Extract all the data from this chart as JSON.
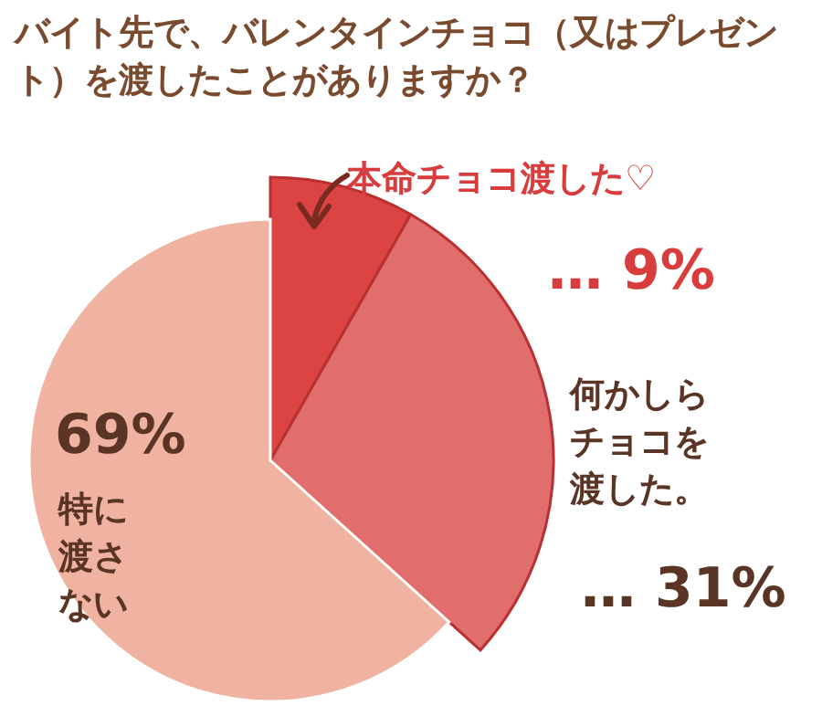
{
  "chart_data": {
    "type": "pie",
    "title": "バイト先で、バレンタインチョコ（又はプレゼント）を渡したことがありますか？",
    "categories": [
      "本命チョコ渡した♡",
      "何かしらチョコを渡した。",
      "特に渡さない"
    ],
    "values": [
      9,
      31,
      69
    ],
    "value_labels": [
      "… 9%",
      "… 31%",
      "69%"
    ],
    "colors": [
      "#dc4444",
      "#e26d6d",
      "#f0b3a1"
    ]
  }
}
